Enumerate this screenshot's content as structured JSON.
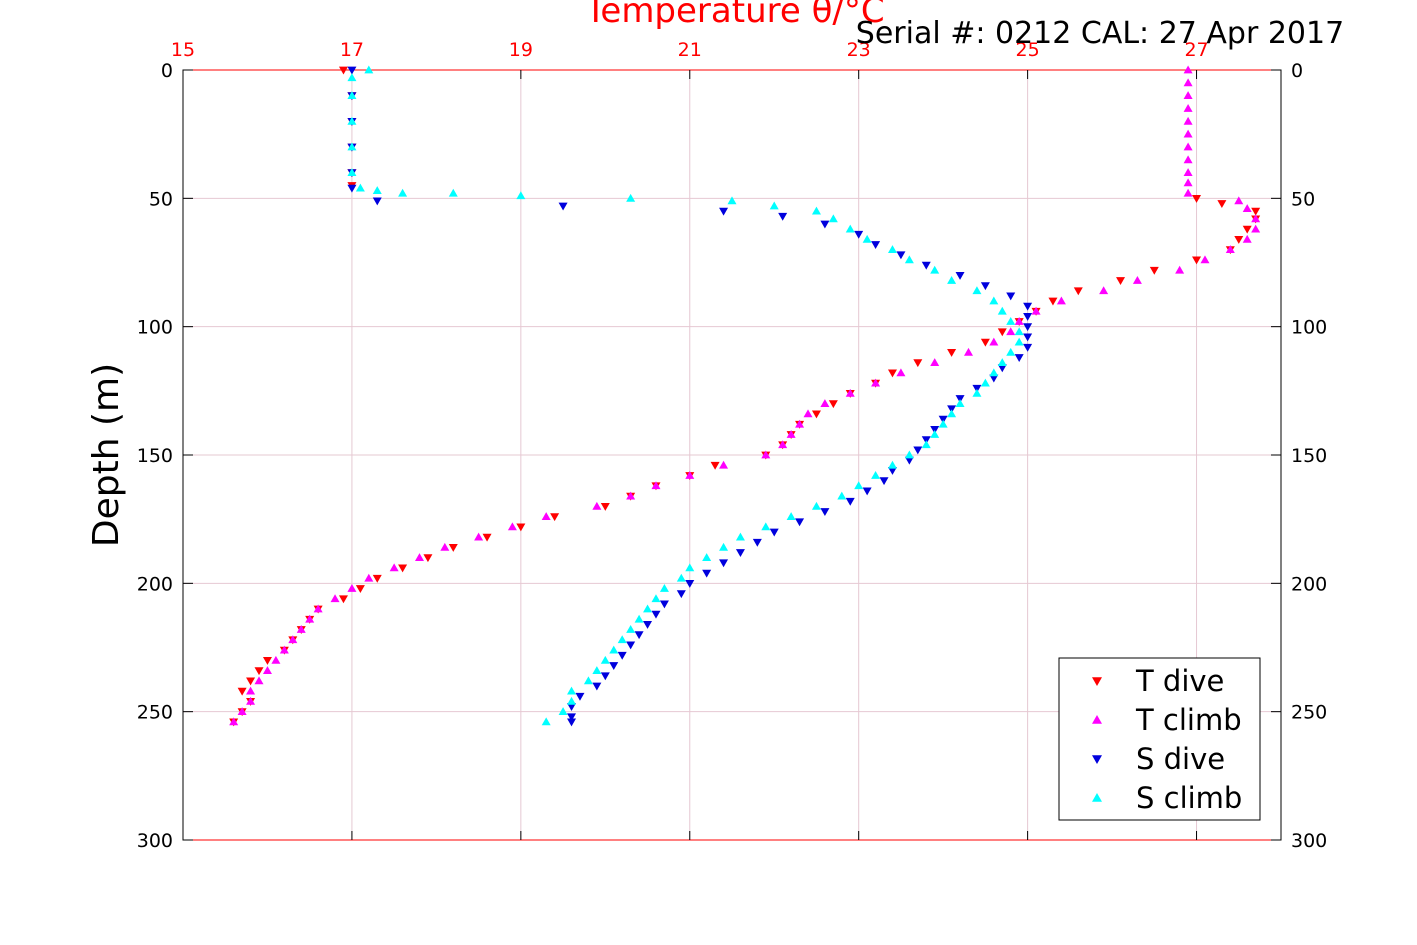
{
  "chart_data": {
    "type": "scatter",
    "title": "Temperature θ/°C",
    "subtitle": "Serial #: 0212  CAL: 27 Apr 2017",
    "ylabel": "Depth (m)",
    "xlim": [
      15,
      28
    ],
    "ylim": [
      0,
      300
    ],
    "y_reversed": true,
    "top_xticks": [
      "15",
      "17",
      "19",
      "21",
      "23",
      "25",
      "27"
    ],
    "yticks": [
      "0",
      "50",
      "100",
      "150",
      "200",
      "250",
      "300"
    ],
    "grid": true,
    "legend_position": "bottom-right",
    "colors": {
      "axis_top": "#ff0000",
      "t_dive": "#ff0000",
      "t_climb": "#ff00ff",
      "s_dive": "#0000dd",
      "s_climb": "#00ffff",
      "grid": "#e6c8d2"
    },
    "series": [
      {
        "name": "T dive",
        "marker": "triangle-down",
        "color": "#ff0000",
        "points": [
          [
            16.9,
            0
          ],
          [
            17.0,
            10
          ],
          [
            17.0,
            20
          ],
          [
            17.0,
            30
          ],
          [
            17.0,
            40
          ],
          [
            17.0,
            45
          ],
          [
            27.0,
            50
          ],
          [
            27.3,
            52
          ],
          [
            27.7,
            55
          ],
          [
            27.7,
            58
          ],
          [
            27.6,
            62
          ],
          [
            27.5,
            66
          ],
          [
            27.4,
            70
          ],
          [
            27.0,
            74
          ],
          [
            26.5,
            78
          ],
          [
            26.1,
            82
          ],
          [
            25.6,
            86
          ],
          [
            25.3,
            90
          ],
          [
            25.1,
            94
          ],
          [
            24.9,
            98
          ],
          [
            24.7,
            102
          ],
          [
            24.5,
            106
          ],
          [
            24.1,
            110
          ],
          [
            23.7,
            114
          ],
          [
            23.4,
            118
          ],
          [
            23.2,
            122
          ],
          [
            22.9,
            126
          ],
          [
            22.7,
            130
          ],
          [
            22.5,
            134
          ],
          [
            22.3,
            138
          ],
          [
            22.2,
            142
          ],
          [
            22.1,
            146
          ],
          [
            21.9,
            150
          ],
          [
            21.3,
            154
          ],
          [
            21.0,
            158
          ],
          [
            20.6,
            162
          ],
          [
            20.3,
            166
          ],
          [
            20.0,
            170
          ],
          [
            19.4,
            174
          ],
          [
            19.0,
            178
          ],
          [
            18.6,
            182
          ],
          [
            18.2,
            186
          ],
          [
            17.9,
            190
          ],
          [
            17.6,
            194
          ],
          [
            17.3,
            198
          ],
          [
            17.1,
            202
          ],
          [
            16.9,
            206
          ],
          [
            16.6,
            210
          ],
          [
            16.5,
            214
          ],
          [
            16.4,
            218
          ],
          [
            16.3,
            222
          ],
          [
            16.2,
            226
          ],
          [
            16.0,
            230
          ],
          [
            15.9,
            234
          ],
          [
            15.8,
            238
          ],
          [
            15.7,
            242
          ],
          [
            15.8,
            246
          ],
          [
            15.7,
            250
          ],
          [
            15.6,
            254
          ]
        ]
      },
      {
        "name": "T climb",
        "marker": "triangle-up",
        "color": "#ff00ff",
        "points": [
          [
            15.6,
            254
          ],
          [
            15.7,
            250
          ],
          [
            15.8,
            246
          ],
          [
            15.8,
            242
          ],
          [
            15.9,
            238
          ],
          [
            16.0,
            234
          ],
          [
            16.1,
            230
          ],
          [
            16.2,
            226
          ],
          [
            16.3,
            222
          ],
          [
            16.4,
            218
          ],
          [
            16.5,
            214
          ],
          [
            16.6,
            210
          ],
          [
            16.8,
            206
          ],
          [
            17.0,
            202
          ],
          [
            17.2,
            198
          ],
          [
            17.5,
            194
          ],
          [
            17.8,
            190
          ],
          [
            18.1,
            186
          ],
          [
            18.5,
            182
          ],
          [
            18.9,
            178
          ],
          [
            19.3,
            174
          ],
          [
            19.9,
            170
          ],
          [
            20.3,
            166
          ],
          [
            20.6,
            162
          ],
          [
            21.0,
            158
          ],
          [
            21.4,
            154
          ],
          [
            21.9,
            150
          ],
          [
            22.1,
            146
          ],
          [
            22.2,
            142
          ],
          [
            22.3,
            138
          ],
          [
            22.4,
            134
          ],
          [
            22.6,
            130
          ],
          [
            22.9,
            126
          ],
          [
            23.2,
            122
          ],
          [
            23.5,
            118
          ],
          [
            23.9,
            114
          ],
          [
            24.3,
            110
          ],
          [
            24.6,
            106
          ],
          [
            24.8,
            102
          ],
          [
            24.9,
            98
          ],
          [
            25.1,
            94
          ],
          [
            25.4,
            90
          ],
          [
            25.9,
            86
          ],
          [
            26.3,
            82
          ],
          [
            26.8,
            78
          ],
          [
            27.1,
            74
          ],
          [
            27.4,
            70
          ],
          [
            27.6,
            66
          ],
          [
            27.7,
            62
          ],
          [
            27.7,
            58
          ],
          [
            27.6,
            54
          ],
          [
            27.5,
            51
          ],
          [
            26.9,
            48
          ],
          [
            26.9,
            44
          ],
          [
            26.9,
            40
          ],
          [
            26.9,
            35
          ],
          [
            26.9,
            30
          ],
          [
            26.9,
            25
          ],
          [
            26.9,
            20
          ],
          [
            26.9,
            15
          ],
          [
            26.9,
            10
          ],
          [
            26.9,
            5
          ],
          [
            26.9,
            0
          ]
        ]
      },
      {
        "name": "S dive",
        "marker": "triangle-down",
        "color": "#0000dd",
        "points": [
          [
            17.0,
            0
          ],
          [
            17.0,
            10
          ],
          [
            17.0,
            20
          ],
          [
            17.0,
            30
          ],
          [
            17.0,
            40
          ],
          [
            17.0,
            46
          ],
          [
            17.3,
            51
          ],
          [
            19.5,
            53
          ],
          [
            21.4,
            55
          ],
          [
            22.1,
            57
          ],
          [
            22.6,
            60
          ],
          [
            23.0,
            64
          ],
          [
            23.2,
            68
          ],
          [
            23.5,
            72
          ],
          [
            23.8,
            76
          ],
          [
            24.2,
            80
          ],
          [
            24.5,
            84
          ],
          [
            24.8,
            88
          ],
          [
            25.0,
            92
          ],
          [
            25.0,
            96
          ],
          [
            25.0,
            100
          ],
          [
            25.0,
            104
          ],
          [
            25.0,
            108
          ],
          [
            24.9,
            112
          ],
          [
            24.7,
            116
          ],
          [
            24.6,
            120
          ],
          [
            24.4,
            124
          ],
          [
            24.2,
            128
          ],
          [
            24.1,
            132
          ],
          [
            24.0,
            136
          ],
          [
            23.9,
            140
          ],
          [
            23.8,
            144
          ],
          [
            23.7,
            148
          ],
          [
            23.6,
            152
          ],
          [
            23.4,
            156
          ],
          [
            23.3,
            160
          ],
          [
            23.1,
            164
          ],
          [
            22.9,
            168
          ],
          [
            22.6,
            172
          ],
          [
            22.3,
            176
          ],
          [
            22.0,
            180
          ],
          [
            21.8,
            184
          ],
          [
            21.6,
            188
          ],
          [
            21.4,
            192
          ],
          [
            21.2,
            196
          ],
          [
            21.0,
            200
          ],
          [
            20.9,
            204
          ],
          [
            20.7,
            208
          ],
          [
            20.6,
            212
          ],
          [
            20.5,
            216
          ],
          [
            20.4,
            220
          ],
          [
            20.3,
            224
          ],
          [
            20.2,
            228
          ],
          [
            20.1,
            232
          ],
          [
            20.0,
            236
          ],
          [
            19.9,
            240
          ],
          [
            19.7,
            244
          ],
          [
            19.6,
            248
          ],
          [
            19.6,
            252
          ],
          [
            19.6,
            254
          ]
        ]
      },
      {
        "name": "S climb",
        "marker": "triangle-up",
        "color": "#00ffff",
        "points": [
          [
            19.3,
            254
          ],
          [
            19.5,
            250
          ],
          [
            19.6,
            246
          ],
          [
            19.6,
            242
          ],
          [
            19.8,
            238
          ],
          [
            19.9,
            234
          ],
          [
            20.0,
            230
          ],
          [
            20.1,
            226
          ],
          [
            20.2,
            222
          ],
          [
            20.3,
            218
          ],
          [
            20.4,
            214
          ],
          [
            20.5,
            210
          ],
          [
            20.6,
            206
          ],
          [
            20.7,
            202
          ],
          [
            20.9,
            198
          ],
          [
            21.0,
            194
          ],
          [
            21.2,
            190
          ],
          [
            21.4,
            186
          ],
          [
            21.6,
            182
          ],
          [
            21.9,
            178
          ],
          [
            22.2,
            174
          ],
          [
            22.5,
            170
          ],
          [
            22.8,
            166
          ],
          [
            23.0,
            162
          ],
          [
            23.2,
            158
          ],
          [
            23.4,
            154
          ],
          [
            23.6,
            150
          ],
          [
            23.8,
            146
          ],
          [
            23.9,
            142
          ],
          [
            24.0,
            138
          ],
          [
            24.1,
            134
          ],
          [
            24.2,
            130
          ],
          [
            24.4,
            126
          ],
          [
            24.5,
            122
          ],
          [
            24.6,
            118
          ],
          [
            24.7,
            114
          ],
          [
            24.8,
            110
          ],
          [
            24.9,
            106
          ],
          [
            24.9,
            102
          ],
          [
            24.8,
            98
          ],
          [
            24.7,
            94
          ],
          [
            24.6,
            90
          ],
          [
            24.4,
            86
          ],
          [
            24.1,
            82
          ],
          [
            23.9,
            78
          ],
          [
            23.6,
            74
          ],
          [
            23.4,
            70
          ],
          [
            23.1,
            66
          ],
          [
            22.9,
            62
          ],
          [
            22.7,
            58
          ],
          [
            22.5,
            55
          ],
          [
            22.0,
            53
          ],
          [
            21.5,
            51
          ],
          [
            20.3,
            50
          ],
          [
            19.0,
            49
          ],
          [
            18.2,
            48
          ],
          [
            17.6,
            48
          ],
          [
            17.3,
            47
          ],
          [
            17.1,
            46
          ],
          [
            17.0,
            40
          ],
          [
            17.0,
            30
          ],
          [
            17.0,
            20
          ],
          [
            17.0,
            10
          ],
          [
            17.0,
            3
          ],
          [
            17.2,
            0
          ]
        ]
      }
    ]
  }
}
